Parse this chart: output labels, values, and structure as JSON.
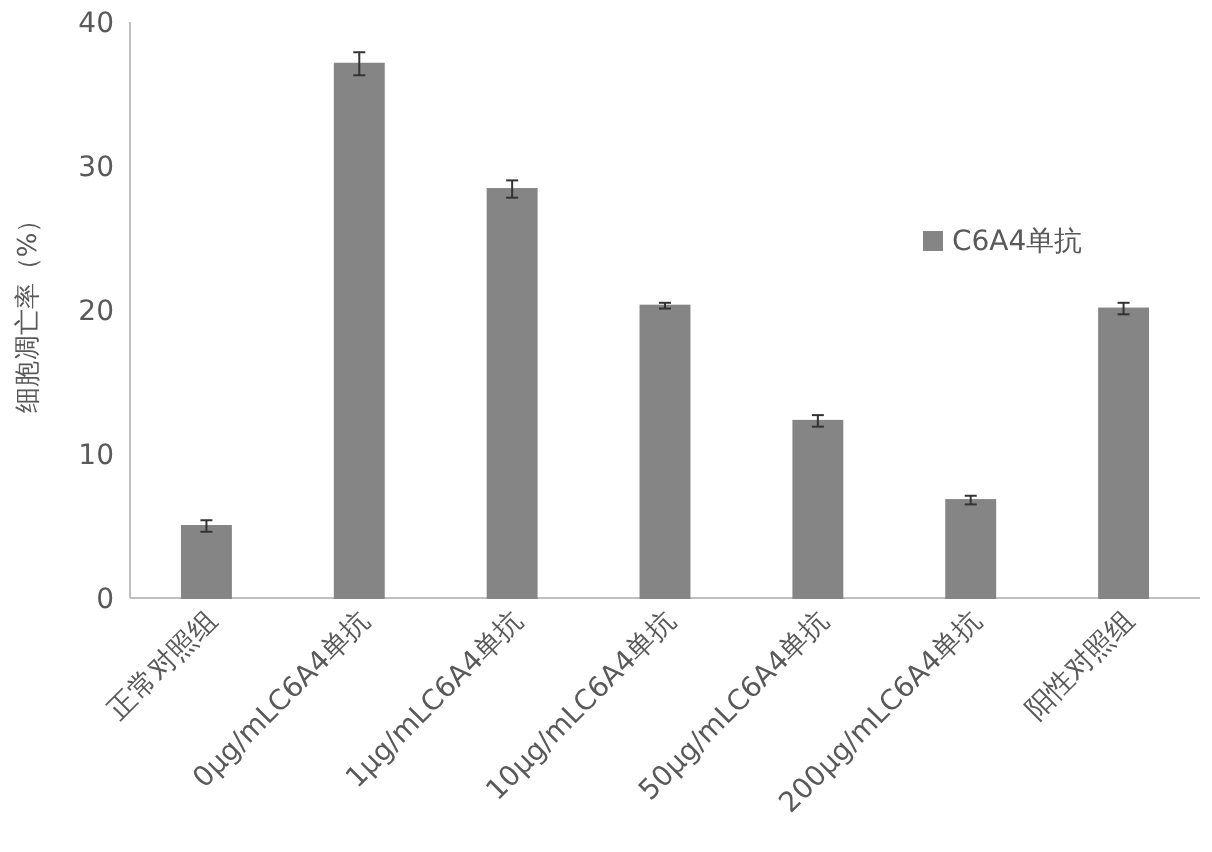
{
  "chart_data": {
    "type": "bar",
    "ylabel": "细胞凋亡率（%）",
    "categories": [
      "正常对照组",
      "0μg/mLC6A4单抗",
      "1μg/mLC6A4单抗",
      "10μg/mLC6A4单抗",
      "50μg/mLC6A4单抗",
      "200μg/mLC6A4单抗",
      "阳性对照组"
    ],
    "series": [
      {
        "name": "C6A4单抗",
        "color": "#858585",
        "values": [
          5.0,
          37.1,
          28.4,
          20.3,
          12.3,
          6.8,
          20.1
        ],
        "errors": [
          0.4,
          0.8,
          0.6,
          0.2,
          0.4,
          0.3,
          0.4
        ]
      }
    ],
    "ylim": [
      0,
      40
    ],
    "yticks": [
      0,
      10,
      20,
      30,
      40
    ],
    "legend": "right"
  }
}
